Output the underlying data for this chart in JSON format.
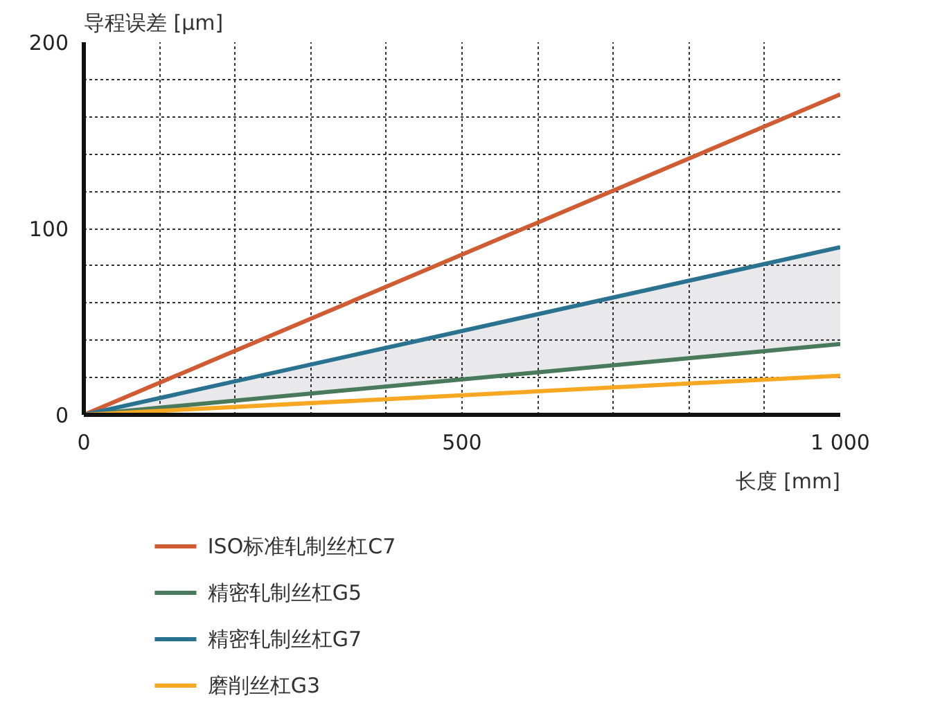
{
  "chart_data": {
    "type": "line",
    "xlabel": "长度 [mm]",
    "ylabel": "导程误差 [μm]",
    "x": [
      0,
      1000
    ],
    "series": [
      {
        "name": "ISO标准轧制丝杠C7",
        "color": "#cf5c33",
        "values": [
          0,
          172
        ]
      },
      {
        "name": "精密轧制丝杠G5",
        "color": "#4a7a5c",
        "values": [
          0,
          38
        ]
      },
      {
        "name": "精密轧制丝杠G7",
        "color": "#2a7390",
        "values": [
          0,
          90
        ],
        "lower": [
          0,
          38
        ],
        "upper": [
          0,
          90
        ]
      },
      {
        "name": "磨削丝杠G3",
        "color": "#f7a823",
        "values": [
          0,
          21
        ]
      }
    ],
    "xlim": [
      0,
      1000
    ],
    "ylim": [
      0,
      200
    ],
    "xticks": [
      0,
      {
        "value": 100,
        "label": null
      },
      {
        "value": 200,
        "label": null
      },
      {
        "value": 300,
        "label": null
      },
      {
        "value": 400,
        "label": null
      },
      500,
      {
        "value": 600,
        "label": null
      },
      {
        "value": 700,
        "label": null
      },
      {
        "value": 800,
        "label": null
      },
      {
        "value": 900,
        "label": null
      },
      {
        "value": 1000,
        "label": "1 000"
      }
    ],
    "yticks": [
      0,
      {
        "value": 20,
        "label": null
      },
      {
        "value": 40,
        "label": null
      },
      {
        "value": 60,
        "label": null
      },
      {
        "value": 80,
        "label": null
      },
      100,
      {
        "value": 120,
        "label": null
      },
      {
        "value": 140,
        "label": null
      },
      {
        "value": 160,
        "label": null
      },
      {
        "value": 180,
        "label": null
      },
      200
    ],
    "grid": true,
    "legend": "bottom",
    "line_style": "solid"
  }
}
